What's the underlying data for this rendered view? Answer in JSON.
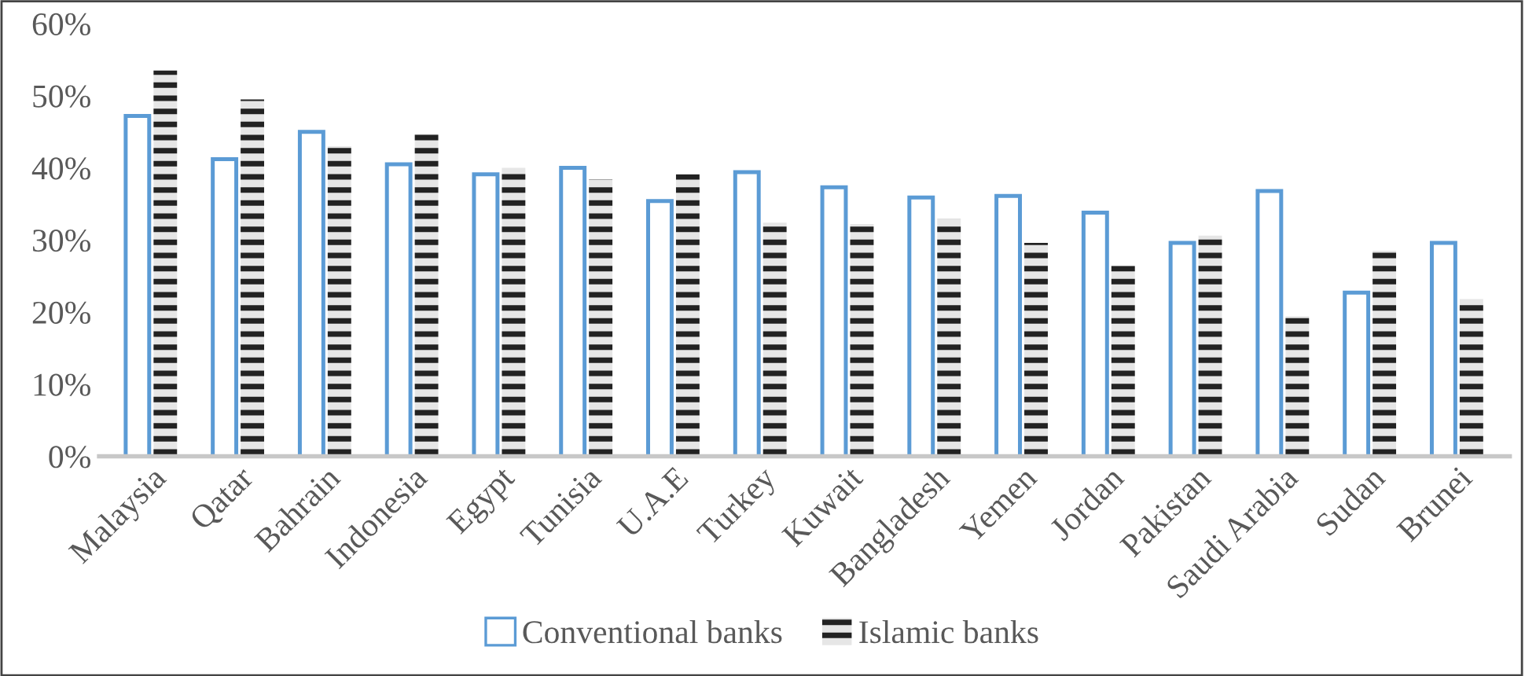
{
  "chart_data": {
    "type": "bar",
    "categories": [
      "Malaysia",
      "Qatar",
      "Bahrain",
      "Indonesia",
      "Egypt",
      "Tunisia",
      "U.A.E",
      "Turkey",
      "Kuwait",
      "Bangladesh",
      "Yemen",
      "Jordan",
      "Pakistan",
      "Saudi Arabia",
      "Sudan",
      "Brunei"
    ],
    "series": [
      {
        "name": "Conventional banks",
        "color": "#5b9bd5",
        "values": [
          47.2,
          41.2,
          45.0,
          40.5,
          39.1,
          40.0,
          35.4,
          39.4,
          37.3,
          35.9,
          36.1,
          33.8,
          29.6,
          36.8,
          22.7,
          29.6
        ]
      },
      {
        "name": "Islamic banks",
        "color": "#222222",
        "values": [
          53.5,
          49.5,
          43.0,
          44.7,
          40.0,
          38.4,
          39.1,
          32.4,
          32.2,
          32.9,
          29.6,
          26.4,
          30.6,
          19.4,
          28.5,
          21.8
        ]
      }
    ],
    "ylim": [
      0,
      60
    ],
    "yticks": [
      {
        "value": 0,
        "label": "0%"
      },
      {
        "value": 10,
        "label": "10%"
      },
      {
        "value": 20,
        "label": "20%"
      },
      {
        "value": 30,
        "label": "30%"
      },
      {
        "value": 40,
        "label": "40%"
      },
      {
        "value": 50,
        "label": "50%"
      },
      {
        "value": 60,
        "label": "60%"
      }
    ],
    "legend": "bottom",
    "grid": false
  }
}
